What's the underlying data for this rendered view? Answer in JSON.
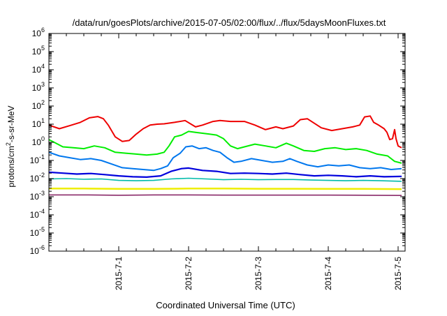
{
  "chart_data": {
    "type": "line",
    "title": "/data/run/goesPlots/archive/2015-07-05/02:00/flux/../flux/5daysMoonFluxes.txt",
    "xlabel": "Coordinated Universal Time (UTC)",
    "ylabel": "protons/cm²-s-sr-MeV",
    "yscale": "log",
    "ylim_exp": [
      -6,
      6
    ],
    "y_tick_labels": [
      {
        "base": "10",
        "exp": "-6"
      },
      {
        "base": "10",
        "exp": "-5"
      },
      {
        "base": "10",
        "exp": "-4"
      },
      {
        "base": "10",
        "exp": "-3"
      },
      {
        "base": "10",
        "exp": "-2"
      },
      {
        "base": "10",
        "exp": "-1"
      },
      {
        "base": "10",
        "exp": "0"
      },
      {
        "base": "10",
        "exp": "1"
      },
      {
        "base": "10",
        "exp": "2"
      },
      {
        "base": "10",
        "exp": "3"
      },
      {
        "base": "10",
        "exp": "4"
      },
      {
        "base": "10",
        "exp": "5"
      },
      {
        "base": "10",
        "exp": "6"
      }
    ],
    "xlim": [
      0,
      5
    ],
    "x_ticks": [
      {
        "t": 1.0,
        "label": "2015-7-1"
      },
      {
        "t": 2.0,
        "label": "2015-7-2"
      },
      {
        "t": 3.0,
        "label": "2015-7-3"
      },
      {
        "t": 4.0,
        "label": "2015-7-4"
      },
      {
        "t": 5.0,
        "label": "2015-7-5"
      }
    ],
    "x_units_note": "days since 2015-06-30 00:00 UTC",
    "grid": false,
    "series": [
      {
        "color": "#ee0000",
        "width": 2,
        "points": [
          [
            0.0,
            0.95
          ],
          [
            0.15,
            0.75
          ],
          [
            0.3,
            0.92
          ],
          [
            0.45,
            1.1
          ],
          [
            0.58,
            1.35
          ],
          [
            0.7,
            1.42
          ],
          [
            0.78,
            1.3
          ],
          [
            0.85,
            0.95
          ],
          [
            0.95,
            0.3
          ],
          [
            1.05,
            0.05
          ],
          [
            1.15,
            0.1
          ],
          [
            1.25,
            0.45
          ],
          [
            1.35,
            0.75
          ],
          [
            1.45,
            0.95
          ],
          [
            1.55,
            1.0
          ],
          [
            1.65,
            1.02
          ],
          [
            1.8,
            1.1
          ],
          [
            1.95,
            1.2
          ],
          [
            2.1,
            0.85
          ],
          [
            2.2,
            0.95
          ],
          [
            2.35,
            1.15
          ],
          [
            2.45,
            1.2
          ],
          [
            2.6,
            1.15
          ],
          [
            2.8,
            1.15
          ],
          [
            2.95,
            0.95
          ],
          [
            3.1,
            0.7
          ],
          [
            3.25,
            0.85
          ],
          [
            3.35,
            0.75
          ],
          [
            3.5,
            0.9
          ],
          [
            3.6,
            1.25
          ],
          [
            3.7,
            1.3
          ],
          [
            3.8,
            1.05
          ],
          [
            3.9,
            0.8
          ],
          [
            4.05,
            0.65
          ],
          [
            4.2,
            0.75
          ],
          [
            4.35,
            0.85
          ],
          [
            4.45,
            0.95
          ],
          [
            4.52,
            1.4
          ],
          [
            4.6,
            1.45
          ],
          [
            4.65,
            1.1
          ],
          [
            4.72,
            0.95
          ],
          [
            4.8,
            0.75
          ],
          [
            4.84,
            0.55
          ],
          [
            4.88,
            0.15
          ],
          [
            4.92,
            0.2
          ],
          [
            4.95,
            0.7
          ],
          [
            4.97,
            0.2
          ],
          [
            5.0,
            -0.2
          ],
          [
            5.05,
            -0.3
          ]
        ]
      },
      {
        "color": "#00ee00",
        "width": 2,
        "points": [
          [
            0.0,
            0.15
          ],
          [
            0.1,
            -0.05
          ],
          [
            0.2,
            -0.25
          ],
          [
            0.35,
            -0.3
          ],
          [
            0.5,
            -0.35
          ],
          [
            0.65,
            -0.2
          ],
          [
            0.8,
            -0.3
          ],
          [
            0.95,
            -0.55
          ],
          [
            1.1,
            -0.6
          ],
          [
            1.25,
            -0.65
          ],
          [
            1.4,
            -0.7
          ],
          [
            1.55,
            -0.65
          ],
          [
            1.65,
            -0.55
          ],
          [
            1.72,
            -0.2
          ],
          [
            1.8,
            0.3
          ],
          [
            1.9,
            0.4
          ],
          [
            2.0,
            0.6
          ],
          [
            2.1,
            0.55
          ],
          [
            2.2,
            0.5
          ],
          [
            2.3,
            0.45
          ],
          [
            2.4,
            0.4
          ],
          [
            2.5,
            0.2
          ],
          [
            2.6,
            -0.2
          ],
          [
            2.7,
            -0.35
          ],
          [
            2.8,
            -0.25
          ],
          [
            2.95,
            -0.1
          ],
          [
            3.1,
            -0.2
          ],
          [
            3.25,
            -0.3
          ],
          [
            3.4,
            -0.05
          ],
          [
            3.5,
            -0.2
          ],
          [
            3.65,
            -0.45
          ],
          [
            3.8,
            -0.5
          ],
          [
            3.95,
            -0.35
          ],
          [
            4.1,
            -0.3
          ],
          [
            4.25,
            -0.4
          ],
          [
            4.4,
            -0.35
          ],
          [
            4.55,
            -0.45
          ],
          [
            4.7,
            -0.65
          ],
          [
            4.85,
            -0.75
          ],
          [
            4.95,
            -1.05
          ],
          [
            5.05,
            -1.15
          ]
        ]
      },
      {
        "color": "#0077ee",
        "width": 2,
        "points": [
          [
            0.0,
            -0.55
          ],
          [
            0.15,
            -0.75
          ],
          [
            0.3,
            -0.85
          ],
          [
            0.45,
            -0.95
          ],
          [
            0.6,
            -0.9
          ],
          [
            0.75,
            -1.0
          ],
          [
            0.9,
            -1.2
          ],
          [
            1.05,
            -1.4
          ],
          [
            1.2,
            -1.45
          ],
          [
            1.35,
            -1.5
          ],
          [
            1.5,
            -1.55
          ],
          [
            1.6,
            -1.45
          ],
          [
            1.7,
            -1.3
          ],
          [
            1.78,
            -0.85
          ],
          [
            1.88,
            -0.6
          ],
          [
            1.96,
            -0.25
          ],
          [
            2.05,
            -0.2
          ],
          [
            2.15,
            -0.35
          ],
          [
            2.25,
            -0.3
          ],
          [
            2.35,
            -0.45
          ],
          [
            2.45,
            -0.55
          ],
          [
            2.55,
            -0.85
          ],
          [
            2.65,
            -1.1
          ],
          [
            2.75,
            -1.05
          ],
          [
            2.9,
            -0.9
          ],
          [
            3.05,
            -1.0
          ],
          [
            3.2,
            -1.1
          ],
          [
            3.35,
            -1.05
          ],
          [
            3.45,
            -0.9
          ],
          [
            3.55,
            -1.05
          ],
          [
            3.7,
            -1.25
          ],
          [
            3.85,
            -1.35
          ],
          [
            4.0,
            -1.25
          ],
          [
            4.15,
            -1.3
          ],
          [
            4.3,
            -1.25
          ],
          [
            4.45,
            -1.4
          ],
          [
            4.6,
            -1.45
          ],
          [
            4.75,
            -1.4
          ],
          [
            4.9,
            -1.5
          ],
          [
            5.05,
            -1.45
          ]
        ]
      },
      {
        "color": "#0000dd",
        "width": 2.2,
        "points": [
          [
            0.0,
            -1.65
          ],
          [
            0.2,
            -1.7
          ],
          [
            0.4,
            -1.75
          ],
          [
            0.6,
            -1.72
          ],
          [
            0.8,
            -1.78
          ],
          [
            1.0,
            -1.85
          ],
          [
            1.2,
            -1.9
          ],
          [
            1.4,
            -1.92
          ],
          [
            1.6,
            -1.85
          ],
          [
            1.75,
            -1.6
          ],
          [
            1.9,
            -1.45
          ],
          [
            2.0,
            -1.42
          ],
          [
            2.2,
            -1.55
          ],
          [
            2.4,
            -1.6
          ],
          [
            2.6,
            -1.72
          ],
          [
            2.8,
            -1.7
          ],
          [
            3.0,
            -1.72
          ],
          [
            3.2,
            -1.75
          ],
          [
            3.4,
            -1.7
          ],
          [
            3.6,
            -1.78
          ],
          [
            3.8,
            -1.85
          ],
          [
            4.0,
            -1.82
          ],
          [
            4.2,
            -1.85
          ],
          [
            4.4,
            -1.9
          ],
          [
            4.6,
            -1.85
          ],
          [
            4.8,
            -1.9
          ],
          [
            5.05,
            -1.88
          ]
        ]
      },
      {
        "color": "#00bbaa",
        "width": 1.6,
        "points": [
          [
            0.0,
            -2.02
          ],
          [
            0.25,
            -2.0
          ],
          [
            0.5,
            -2.04
          ],
          [
            0.75,
            -2.02
          ],
          [
            1.0,
            -2.1
          ],
          [
            1.25,
            -2.12
          ],
          [
            1.5,
            -2.1
          ],
          [
            1.75,
            -2.02
          ],
          [
            2.0,
            -1.98
          ],
          [
            2.25,
            -2.02
          ],
          [
            2.5,
            -2.06
          ],
          [
            2.75,
            -2.04
          ],
          [
            3.0,
            -2.06
          ],
          [
            3.25,
            -2.05
          ],
          [
            3.5,
            -2.05
          ],
          [
            3.75,
            -2.08
          ],
          [
            4.0,
            -2.1
          ],
          [
            4.25,
            -2.12
          ],
          [
            4.5,
            -2.1
          ],
          [
            4.75,
            -2.12
          ],
          [
            5.05,
            -2.15
          ]
        ]
      },
      {
        "color": "#eeee00",
        "width": 2.5,
        "points": [
          [
            0.0,
            -2.55
          ],
          [
            0.5,
            -2.55
          ],
          [
            1.0,
            -2.57
          ],
          [
            1.5,
            -2.57
          ],
          [
            2.0,
            -2.55
          ],
          [
            2.5,
            -2.55
          ],
          [
            3.0,
            -2.56
          ],
          [
            3.5,
            -2.56
          ],
          [
            4.0,
            -2.57
          ],
          [
            4.5,
            -2.57
          ],
          [
            5.05,
            -2.58
          ]
        ]
      },
      {
        "color": "#8a2a6a",
        "width": 1.6,
        "points": [
          [
            0.0,
            -2.9
          ],
          [
            0.5,
            -2.9
          ],
          [
            1.0,
            -2.92
          ],
          [
            1.5,
            -2.9
          ],
          [
            2.0,
            -2.9
          ],
          [
            2.5,
            -2.91
          ],
          [
            3.0,
            -2.91
          ],
          [
            3.5,
            -2.91
          ],
          [
            4.0,
            -2.91
          ],
          [
            4.5,
            -2.92
          ],
          [
            5.05,
            -2.93
          ]
        ]
      }
    ]
  }
}
